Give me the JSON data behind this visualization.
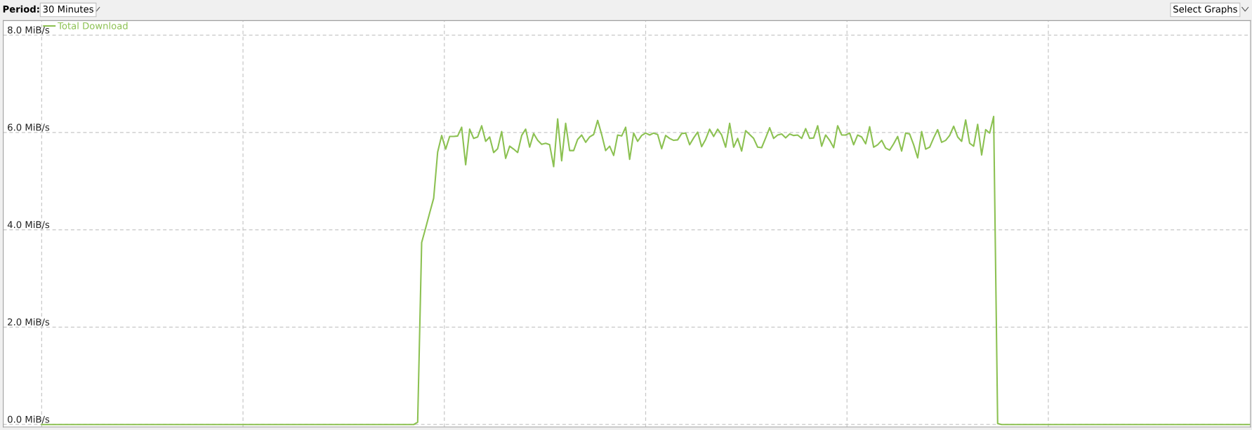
{
  "chart_data": {
    "type": "line",
    "annotations": [
      "Period:",
      "30 Minutes",
      "Select Graphs"
    ],
    "categories": [
      null,
      null,
      null,
      null,
      null,
      null,
      null,
      null,
      null,
      null,
      null,
      null,
      null,
      null,
      null,
      null,
      null,
      null,
      null,
      null,
      null,
      null,
      null,
      null,
      null,
      null,
      null,
      null,
      null,
      null,
      null,
      null,
      null,
      null,
      null,
      null,
      null,
      null,
      null,
      null,
      null,
      null,
      null,
      null,
      null,
      null,
      null,
      null,
      null,
      null,
      null,
      null,
      null,
      null,
      null,
      null,
      null,
      null,
      null,
      null,
      null,
      null,
      null,
      null,
      null,
      null,
      null,
      null,
      null,
      null,
      null,
      null,
      null,
      null,
      null,
      null,
      null,
      null,
      null,
      null,
      null,
      null,
      null,
      null,
      null,
      null,
      null,
      null,
      null,
      null,
      null,
      null,
      null,
      null,
      null,
      null,
      null,
      null,
      null,
      null,
      null,
      null,
      null,
      null,
      null,
      null,
      null,
      null,
      null,
      null,
      null,
      null,
      null,
      null,
      null,
      null,
      null,
      null,
      null,
      null,
      null,
      null,
      null,
      null,
      null,
      null,
      null,
      null,
      null,
      null,
      null,
      null,
      null,
      null,
      null,
      null,
      null,
      null,
      null,
      null,
      null,
      null,
      null,
      null,
      null,
      null,
      null,
      null,
      null,
      null,
      null,
      null,
      null,
      null,
      null,
      null,
      null,
      null,
      null,
      null,
      null,
      null,
      null,
      null,
      null,
      null,
      null,
      null,
      null,
      null,
      null,
      null,
      null,
      null,
      null,
      null,
      null,
      null,
      null,
      null,
      null,
      null,
      null,
      null,
      null,
      null,
      null,
      null,
      null,
      null,
      null,
      null,
      null,
      null,
      null,
      null,
      null,
      null,
      null,
      null,
      null,
      null,
      null,
      null,
      null,
      null,
      null,
      null,
      null,
      null,
      null,
      null,
      null,
      null,
      null,
      null,
      null,
      null,
      null,
      null,
      null,
      null,
      null,
      null,
      null,
      null,
      null,
      null,
      null,
      null,
      null,
      null,
      null,
      null,
      null,
      null,
      null,
      null,
      null,
      null,
      null,
      null,
      null,
      null,
      null,
      null,
      null,
      null,
      null,
      null,
      null,
      null,
      null,
      null,
      null,
      null,
      null,
      null,
      null,
      null,
      null,
      null,
      null,
      null,
      null,
      null,
      null,
      null,
      null,
      null,
      null,
      null,
      null,
      null,
      null,
      null,
      null,
      null,
      null,
      null,
      null,
      null,
      null,
      null,
      null,
      null,
      null,
      null,
      null,
      null,
      null,
      null,
      null,
      null,
      null,
      null,
      null,
      null,
      null,
      null,
      null,
      null,
      null
    ],
    "series": [
      {
        "name": "Total Download",
        "color": "#8cc152",
        "values": [
          0,
          0,
          0,
          0,
          0,
          0,
          0,
          0,
          0,
          0,
          0,
          0,
          0,
          0,
          0,
          0,
          0,
          0,
          0,
          0,
          0,
          0,
          0,
          0,
          0,
          0,
          0,
          0,
          0,
          0,
          0,
          0,
          0,
          0,
          0,
          0,
          0,
          0,
          0,
          0,
          0,
          0,
          0,
          0,
          0,
          0,
          0,
          0,
          0,
          0,
          0,
          0,
          0,
          0,
          0,
          0,
          0,
          0,
          0,
          0,
          0,
          0,
          0,
          0,
          0,
          0,
          0,
          0,
          0,
          0,
          0,
          0,
          0,
          0,
          0,
          0,
          0,
          0,
          0,
          0,
          0,
          0,
          0,
          0,
          0,
          0,
          0,
          0,
          0,
          0,
          0,
          0,
          0,
          0,
          0.05,
          3.74,
          4.04,
          4.35,
          4.65,
          5.6,
          5.94,
          5.66,
          5.92,
          5.92,
          5.93,
          6.11,
          5.34,
          6.07,
          5.88,
          5.91,
          6.14,
          5.82,
          5.91,
          5.59,
          5.67,
          6.02,
          5.47,
          5.72,
          5.66,
          5.59,
          5.94,
          6.07,
          5.7,
          5.98,
          5.84,
          5.76,
          5.78,
          5.75,
          5.3,
          6.28,
          5.42,
          6.19,
          5.63,
          5.63,
          5.86,
          5.95,
          5.8,
          5.91,
          5.96,
          6.25,
          5.96,
          5.63,
          5.72,
          5.53,
          5.95,
          5.93,
          6.11,
          5.45,
          5.99,
          5.82,
          5.94,
          5.99,
          5.95,
          5.99,
          5.96,
          5.67,
          5.94,
          5.88,
          5.84,
          5.85,
          5.98,
          5.99,
          5.75,
          5.89,
          6.01,
          5.71,
          5.86,
          6.07,
          5.92,
          6.07,
          5.95,
          5.7,
          6.19,
          5.7,
          5.88,
          5.62,
          6.04,
          5.96,
          5.88,
          5.7,
          5.69,
          5.89,
          6.1,
          5.88,
          5.95,
          5.97,
          5.89,
          5.97,
          5.94,
          5.95,
          5.88,
          6.08,
          5.88,
          5.89,
          6.14,
          5.72,
          5.95,
          5.84,
          5.69,
          6.14,
          5.95,
          5.95,
          5.99,
          5.75,
          5.95,
          5.91,
          5.77,
          6.12,
          5.7,
          5.75,
          5.84,
          5.68,
          5.64,
          5.77,
          5.92,
          5.62,
          5.99,
          5.97,
          5.75,
          5.48,
          6.02,
          5.66,
          5.7,
          5.89,
          6.06,
          5.8,
          5.84,
          5.94,
          6.13,
          5.91,
          5.82,
          6.26,
          5.78,
          5.72,
          6.17,
          5.54,
          6.06,
          5.99,
          6.33,
          0.02,
          0,
          0,
          0,
          0,
          0,
          0,
          0,
          0,
          0,
          0,
          0,
          0,
          0,
          0,
          0,
          0,
          0,
          0,
          0,
          0,
          0,
          0,
          0,
          0,
          0,
          0,
          0,
          0,
          0,
          0,
          0,
          0,
          0,
          0,
          0,
          0,
          0,
          0,
          0,
          0,
          0,
          0,
          0,
          0,
          0,
          0,
          0,
          0,
          0,
          0,
          0,
          0,
          0,
          0,
          0,
          0,
          0,
          0,
          0,
          0,
          0,
          0,
          0
        ]
      }
    ],
    "ylim": [
      -0.05,
      8.3
    ],
    "yticks": [
      {
        "value": 0,
        "label": "0.0 MiB/s"
      },
      {
        "value": 2,
        "label": "2.0 MiB/s"
      },
      {
        "value": 4,
        "label": "4.0 MiB/s"
      },
      {
        "value": 6,
        "label": "6.0 MiB/s"
      },
      {
        "value": 8,
        "label": "8.0 MiB/s"
      }
    ],
    "tick_labels": "y",
    "grid": true,
    "legend": "top left",
    "marker": "none",
    "line_style": "solid"
  }
}
